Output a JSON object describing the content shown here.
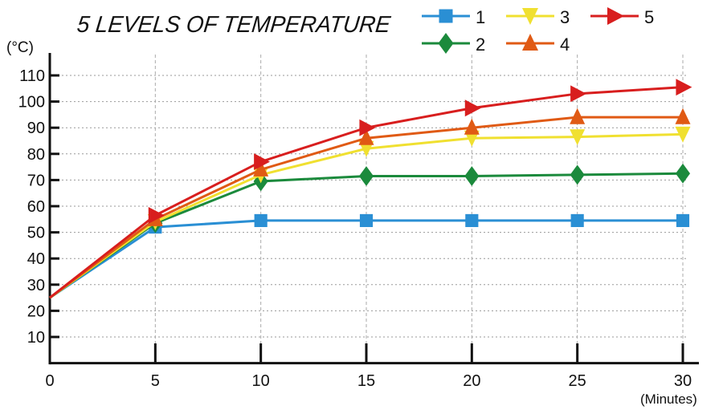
{
  "chart_data": {
    "type": "line",
    "title": "5 LEVELS OF TEMPERATURE",
    "xlabel": "(Minutes)",
    "ylabel": "(°C)",
    "x": [
      0,
      5,
      10,
      15,
      20,
      25,
      30
    ],
    "xticks": [
      "0",
      "5",
      "10",
      "15",
      "20",
      "25",
      "30"
    ],
    "yticks": [
      "10",
      "20",
      "30",
      "40",
      "50",
      "60",
      "70",
      "80",
      "90",
      "100",
      "110"
    ],
    "xlim": [
      0,
      30
    ],
    "ylim": [
      0,
      115
    ],
    "grid": true,
    "legend_position": "top-right",
    "series": [
      {
        "name": "1",
        "marker": "square",
        "color": "#2a8fd4",
        "values": [
          25,
          52,
          54.5,
          54.5,
          54.5,
          54.5,
          54.5
        ]
      },
      {
        "name": "2",
        "marker": "diamond",
        "color": "#1b8a3c",
        "values": [
          25,
          53.5,
          69.5,
          71.5,
          71.5,
          72,
          72.5
        ]
      },
      {
        "name": "3",
        "marker": "triangle-down",
        "color": "#f0e030",
        "values": [
          25,
          54,
          72,
          82,
          86,
          86.5,
          87.5
        ]
      },
      {
        "name": "4",
        "marker": "triangle-up",
        "color": "#e05a14",
        "values": [
          25,
          55,
          74,
          86,
          90,
          94,
          94
        ]
      },
      {
        "name": "5",
        "marker": "triangle-right",
        "color": "#d81e1e",
        "values": [
          25,
          56.5,
          77,
          90,
          97.5,
          103,
          105.5
        ]
      }
    ]
  }
}
